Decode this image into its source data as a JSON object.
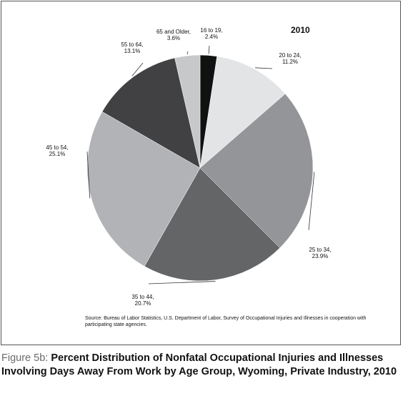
{
  "chart_data": {
    "type": "pie",
    "title": "2010",
    "slices": [
      {
        "label": "16 to 19,",
        "pct": "2.4%",
        "value": 2.4,
        "color": "#111111"
      },
      {
        "label": "20 to 24,",
        "pct": "11.2%",
        "value": 11.2,
        "color": "#e3e4e6"
      },
      {
        "label": "25 to 34,",
        "pct": "23.9%",
        "value": 23.9,
        "color": "#939598"
      },
      {
        "label": "35 to 44,",
        "pct": "20.7%",
        "value": 20.7,
        "color": "#646567"
      },
      {
        "label": "45 to 54,",
        "pct": "25.1%",
        "value": 25.1,
        "color": "#b1b3b6"
      },
      {
        "label": "55 to 64,",
        "pct": "13.1%",
        "value": 13.1,
        "color": "#414042"
      },
      {
        "label": "65 and Older,",
        "pct": "3.6%",
        "value": 3.6,
        "color": "#c7c8ca"
      }
    ]
  },
  "source": "Source: Bureau of Labor Statistics, U.S. Department of Labor, Survey of Occupational Injuries and Illnesses in cooperation with participating state agencies.",
  "caption": {
    "label": "Figure 5b:",
    "text": "Percent Distribution of Nonfatal Occupational Injuries and Illnesses Involving Days Away From Work by Age Group, Wyoming, Private Industry, 2010"
  }
}
